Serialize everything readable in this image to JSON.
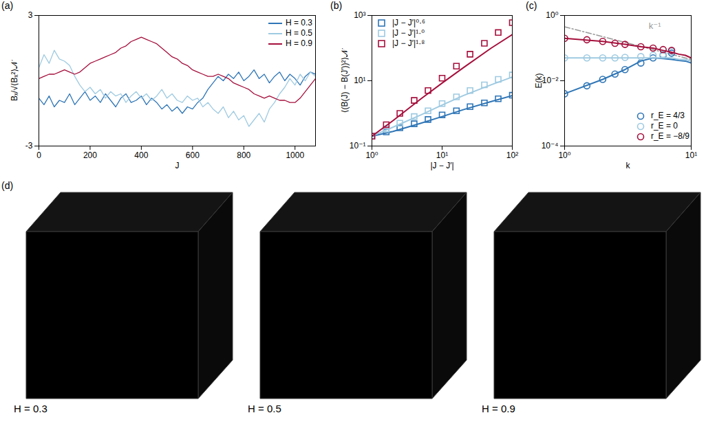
{
  "chart_data": [
    {
      "type": "line",
      "panel_label": "(a)",
      "xlabel": "J",
      "ylabel": "Bₓ/√⟨Bₓ²⟩𝒩",
      "xlim": [
        0,
        1080
      ],
      "xticks": [
        0,
        200,
        400,
        600,
        800,
        1000
      ],
      "ylim": [
        -3,
        3
      ],
      "yticks": [
        -3,
        3
      ],
      "legend": "top-right",
      "x": [
        0,
        20,
        40,
        60,
        80,
        100,
        120,
        140,
        160,
        180,
        200,
        220,
        240,
        260,
        280,
        300,
        320,
        340,
        360,
        380,
        400,
        420,
        440,
        460,
        480,
        500,
        520,
        540,
        560,
        580,
        600,
        620,
        640,
        660,
        680,
        700,
        720,
        740,
        760,
        780,
        800,
        820,
        840,
        860,
        880,
        900,
        920,
        940,
        960,
        980,
        1000,
        1020,
        1040,
        1060,
        1080
      ],
      "series": [
        {
          "name": "H = 0.3",
          "color": "#2e75b6",
          "values": [
            -0.8,
            -1.1,
            -0.7,
            -1.2,
            -0.9,
            -1.0,
            -0.6,
            -1.1,
            -0.8,
            -0.5,
            -0.9,
            -0.7,
            -1.0,
            -0.6,
            -0.9,
            -1.2,
            -0.8,
            -0.6,
            -1.0,
            -0.9,
            -0.7,
            -1.1,
            -0.8,
            -1.0,
            -1.3,
            -1.1,
            -1.4,
            -1.2,
            -1.5,
            -1.2,
            -1.3,
            -1.0,
            -0.8,
            -0.4,
            -0.1,
            0.2,
            0.0,
            0.3,
            0.1,
            0.4,
            0.0,
            0.2,
            0.5,
            0.1,
            0.3,
            -0.1,
            0.2,
            0.4,
            0.0,
            0.3,
            0.1,
            -0.2,
            0.2,
            0.4,
            0.3
          ]
        },
        {
          "name": "H = 0.5",
          "color": "#9ecae1",
          "values": [
            0.6,
            1.2,
            0.8,
            1.4,
            1.0,
            0.9,
            0.7,
            0.2,
            -0.2,
            -0.5,
            -0.3,
            -0.6,
            -0.4,
            -0.8,
            -0.5,
            -0.7,
            -0.6,
            -1.0,
            -0.7,
            -0.5,
            -0.8,
            -0.6,
            -0.9,
            -0.7,
            -0.4,
            -0.8,
            -0.6,
            -0.9,
            -1.0,
            -0.7,
            -0.9,
            -0.8,
            -1.2,
            -1.0,
            -1.3,
            -1.5,
            -1.2,
            -1.7,
            -1.4,
            -1.8,
            -1.6,
            -2.1,
            -1.8,
            -1.5,
            -1.9,
            -1.3,
            -1.0,
            -0.6,
            -0.3,
            0.1,
            -0.2,
            0.3,
            0.0,
            0.4,
            0.2
          ]
        },
        {
          "name": "H = 0.9",
          "color": "#a50f3c",
          "values": [
            0.1,
            0.2,
            0.3,
            0.3,
            0.4,
            0.5,
            0.4,
            0.3,
            0.4,
            0.6,
            0.8,
            0.9,
            1.0,
            1.1,
            1.2,
            1.3,
            1.5,
            1.6,
            1.8,
            1.9,
            2.0,
            1.9,
            1.8,
            1.7,
            1.5,
            1.3,
            1.1,
            1.0,
            0.8,
            0.7,
            0.5,
            0.4,
            0.3,
            0.2,
            0.2,
            0.3,
            0.2,
            0.1,
            -0.1,
            -0.2,
            -0.3,
            -0.4,
            -0.6,
            -0.7,
            -0.8,
            -0.7,
            -0.8,
            -0.9,
            -0.9,
            -1.0,
            -1.0,
            -0.8,
            -0.5,
            -0.2,
            0.1
          ]
        }
      ]
    },
    {
      "type": "line",
      "panel_label": "(b)",
      "xlabel": "|J − J′|",
      "ylabel": "⟨(B(J) − B(J′))²⟩𝒩",
      "log": true,
      "legend": "top-left",
      "xlim": [
        1,
        100
      ],
      "xticks": [
        {
          "value": 1,
          "label": "10⁰"
        },
        {
          "value": 10,
          "label": "10¹"
        },
        {
          "value": 100,
          "label": "10²"
        }
      ],
      "ylim": [
        0.1,
        1000
      ],
      "yticks": [
        {
          "value": 0.1,
          "label": "10⁻¹"
        },
        {
          "value": 10,
          "label": "10¹"
        },
        {
          "value": 1000,
          "label": "10³"
        }
      ],
      "series": [
        {
          "name": "|J − J′|⁰·⁶",
          "color": "#2e75b6",
          "marker": "square",
          "x": [
            1,
            1.6,
            2.5,
            4,
            6.3,
            10,
            16,
            25,
            40,
            63,
            100
          ],
          "values": [
            0.2,
            0.27,
            0.36,
            0.48,
            0.65,
            0.9,
            1.2,
            1.6,
            2.1,
            2.8,
            3.6
          ],
          "line_x": [
            1,
            2,
            5,
            10,
            20,
            50,
            100
          ],
          "line_values": [
            0.2,
            0.28,
            0.5,
            0.8,
            1.3,
            2.3,
            3.5
          ]
        },
        {
          "name": "|J − J′|¹·⁰",
          "color": "#9ecae1",
          "marker": "square",
          "x": [
            1,
            1.6,
            2.5,
            4,
            6.3,
            10,
            16,
            25,
            40,
            63,
            100
          ],
          "values": [
            0.2,
            0.33,
            0.5,
            0.8,
            1.2,
            2.0,
            3.2,
            5,
            7.5,
            11,
            15
          ],
          "line_x": [
            1,
            2,
            5,
            10,
            20,
            50,
            100
          ],
          "line_values": [
            0.2,
            0.38,
            0.9,
            1.8,
            3.5,
            7.5,
            13
          ]
        },
        {
          "name": "|J − J′|¹·⁸",
          "color": "#a50f3c",
          "marker": "square",
          "x": [
            1,
            1.6,
            2.5,
            4,
            6.3,
            10,
            16,
            25,
            40,
            63,
            100
          ],
          "values": [
            0.2,
            0.45,
            1.0,
            2.5,
            5,
            12,
            28,
            65,
            140,
            300,
            600
          ],
          "line_x": [
            1,
            2,
            5,
            10,
            20,
            50,
            100
          ],
          "line_values": [
            0.2,
            0.6,
            2.8,
            8.5,
            25,
            100,
            260
          ]
        }
      ]
    },
    {
      "type": "line",
      "panel_label": "(c)",
      "xlabel": "k",
      "ylabel": "E(k)",
      "log": true,
      "legend": "bottom-right",
      "xlim": [
        1,
        10
      ],
      "xticks": [
        {
          "value": 1,
          "label": "10⁰"
        },
        {
          "value": 10,
          "label": "10¹"
        }
      ],
      "ylim": [
        0.0001,
        1
      ],
      "yticks": [
        {
          "value": 0.0001,
          "label": "10⁻⁴"
        },
        {
          "value": 0.01,
          "label": "10⁻²"
        },
        {
          "value": 1,
          "label": "10⁰"
        }
      ],
      "reference": {
        "label": "k⁻¹",
        "color": "#999999",
        "line_style": "dashdot",
        "x": [
          1,
          10
        ],
        "values": [
          0.45,
          0.045
        ]
      },
      "series": [
        {
          "name": "r_E = 4/3",
          "color": "#2e75b6",
          "marker": "circle",
          "x": [
            1,
            1.5,
            2,
            2.5,
            3,
            4,
            5,
            6,
            7
          ],
          "values": [
            0.004,
            0.007,
            0.011,
            0.016,
            0.022,
            0.035,
            0.05,
            0.06,
            0.07
          ],
          "line_x": [
            1,
            2,
            3,
            4,
            5,
            6,
            7,
            8,
            9,
            10
          ],
          "line_values": [
            0.004,
            0.011,
            0.022,
            0.04,
            0.05,
            0.048,
            0.045,
            0.042,
            0.04,
            0.035
          ]
        },
        {
          "name": "r_E = 0",
          "color": "#9ecae1",
          "marker": "circle",
          "x": [
            1,
            1.5,
            2,
            2.5,
            3,
            4,
            5,
            6,
            7
          ],
          "values": [
            0.05,
            0.05,
            0.05,
            0.05,
            0.052,
            0.055,
            0.06,
            0.065,
            0.08
          ],
          "line_x": [
            1,
            2,
            3,
            4,
            5,
            6,
            7,
            8,
            9,
            10
          ],
          "line_values": [
            0.05,
            0.05,
            0.05,
            0.05,
            0.05,
            0.05,
            0.05,
            0.045,
            0.045,
            0.04
          ]
        },
        {
          "name": "r_E = −8/9",
          "color": "#a50f3c",
          "marker": "circle",
          "x": [
            1,
            1.5,
            2,
            2.5,
            3,
            4,
            5,
            6,
            7
          ],
          "values": [
            0.2,
            0.18,
            0.16,
            0.14,
            0.13,
            0.11,
            0.1,
            0.09,
            0.085
          ],
          "line_x": [
            1,
            2,
            3,
            4,
            5,
            6,
            7,
            8,
            9,
            10
          ],
          "line_values": [
            0.2,
            0.16,
            0.13,
            0.11,
            0.1,
            0.085,
            0.075,
            0.065,
            0.06,
            0.05
          ]
        }
      ]
    },
    {
      "type": "image",
      "panel_label": "(d)",
      "images": [
        {
          "label": "H = 0.3"
        },
        {
          "label": "H = 0.5"
        },
        {
          "label": "H = 0.9"
        }
      ]
    }
  ]
}
